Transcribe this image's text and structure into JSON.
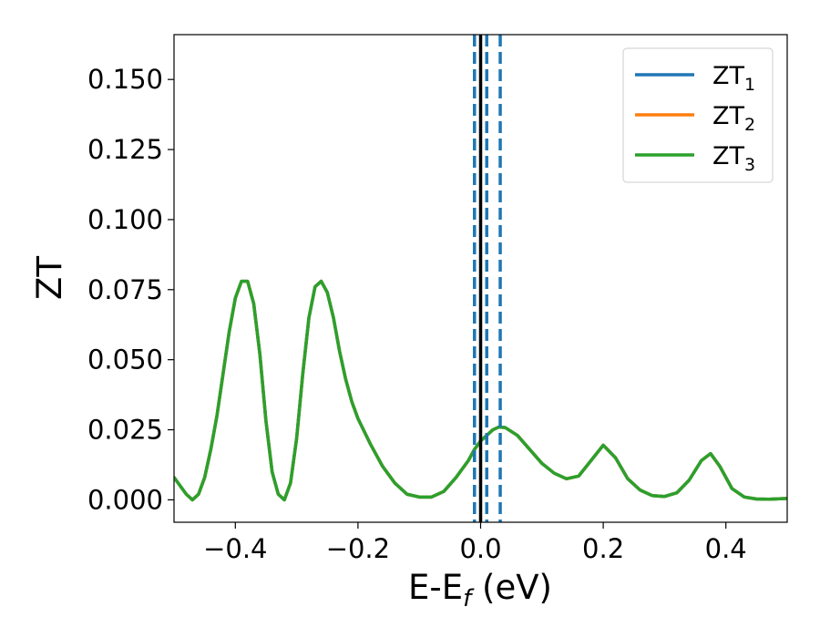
{
  "chart_data": {
    "type": "line",
    "xlabel": {
      "main": "E-E",
      "sub": "f",
      "tail": " (eV)"
    },
    "ylabel": "ZT",
    "xlim": [
      -0.5,
      0.5
    ],
    "ylim": [
      -0.008,
      0.166
    ],
    "xticks": [
      -0.4,
      -0.2,
      0.0,
      0.2,
      0.4
    ],
    "xtick_labels": [
      "−0.4",
      "−0.2",
      "0.0",
      "0.2",
      "0.4"
    ],
    "yticks": [
      0.0,
      0.025,
      0.05,
      0.075,
      0.1,
      0.125,
      0.15
    ],
    "ytick_labels": [
      "0.000",
      "0.025",
      "0.050",
      "0.075",
      "0.100",
      "0.125",
      "0.150"
    ],
    "grid": false,
    "legend_position": "top-right",
    "series": [
      {
        "name": "ZT",
        "sub": "1",
        "color": "#1f77b4"
      },
      {
        "name": "ZT",
        "sub": "2",
        "color": "#ff7f0e"
      },
      {
        "name": "ZT",
        "sub": "3",
        "color": "#2ca02c"
      }
    ],
    "x": [
      -0.5,
      -0.48,
      -0.47,
      -0.46,
      -0.45,
      -0.44,
      -0.43,
      -0.42,
      -0.41,
      -0.4,
      -0.39,
      -0.38,
      -0.37,
      -0.36,
      -0.35,
      -0.34,
      -0.33,
      -0.32,
      -0.31,
      -0.3,
      -0.29,
      -0.28,
      -0.27,
      -0.26,
      -0.25,
      -0.24,
      -0.23,
      -0.22,
      -0.21,
      -0.2,
      -0.18,
      -0.16,
      -0.14,
      -0.12,
      -0.1,
      -0.08,
      -0.06,
      -0.04,
      -0.02,
      -0.01,
      0.0,
      0.01,
      0.02,
      0.03,
      0.04,
      0.06,
      0.08,
      0.1,
      0.12,
      0.14,
      0.16,
      0.18,
      0.2,
      0.22,
      0.24,
      0.26,
      0.28,
      0.3,
      0.32,
      0.34,
      0.36,
      0.375,
      0.39,
      0.41,
      0.43,
      0.45,
      0.47,
      0.5
    ],
    "y": [
      0.008,
      0.002,
      0.0,
      0.002,
      0.008,
      0.018,
      0.03,
      0.045,
      0.06,
      0.072,
      0.078,
      0.078,
      0.07,
      0.052,
      0.028,
      0.01,
      0.002,
      0.0,
      0.006,
      0.022,
      0.045,
      0.065,
      0.076,
      0.078,
      0.074,
      0.065,
      0.053,
      0.043,
      0.035,
      0.029,
      0.02,
      0.012,
      0.006,
      0.002,
      0.001,
      0.001,
      0.003,
      0.008,
      0.014,
      0.018,
      0.021,
      0.023,
      0.025,
      0.026,
      0.0258,
      0.023,
      0.018,
      0.013,
      0.0095,
      0.0075,
      0.0085,
      0.014,
      0.0195,
      0.015,
      0.0075,
      0.0035,
      0.0015,
      0.0012,
      0.0025,
      0.007,
      0.014,
      0.0165,
      0.012,
      0.004,
      0.001,
      0.0003,
      0.0002,
      0.0005
    ],
    "reference_lines": {
      "solid": {
        "x": 0.0,
        "color": "#000000"
      },
      "dashed": {
        "x": [
          -0.01,
          0.01,
          0.032
        ],
        "color": "#1f77b4"
      }
    }
  }
}
